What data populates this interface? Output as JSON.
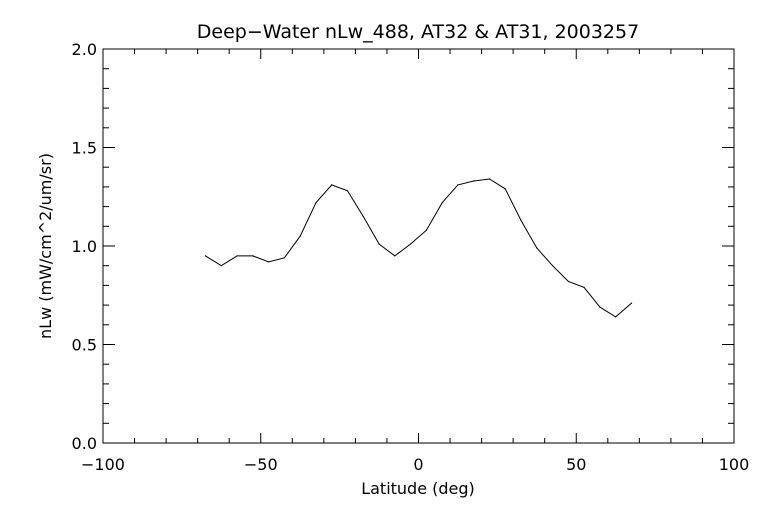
{
  "chart_data": {
    "type": "line",
    "title": "Deep−Water nLw_488, AT32 & AT31, 2003257",
    "xlabel": "Latitude (deg)",
    "ylabel": "nLw (mW/cm^2/um/sr)",
    "xlim": [
      -100,
      100
    ],
    "ylim": [
      0.0,
      2.0
    ],
    "x_ticks": [
      -100,
      -50,
      0,
      50,
      100
    ],
    "x_tick_labels": [
      "−100",
      "−50",
      "0",
      "50",
      "100"
    ],
    "y_ticks": [
      0.0,
      0.5,
      1.0,
      1.5,
      2.0
    ],
    "y_tick_labels": [
      "0.0",
      "0.5",
      "1.0",
      "1.5",
      "2.0"
    ],
    "x_minor_step": 10,
    "y_minor_step": 0.1,
    "grid": false,
    "line_color": "#000000",
    "series": [
      {
        "x": [
          -67.5,
          -62.5,
          -57.5,
          -52.5,
          -47.5,
          -42.5,
          -37.5,
          -32.5,
          -27.5,
          -22.5,
          -17.5,
          -12.5,
          -7.5,
          -2.5,
          2.5,
          7.5,
          12.5,
          17.5,
          22.5,
          27.5,
          32.5,
          37.5,
          42.5,
          47.5,
          52.5,
          57.5,
          62.5,
          67.5
        ],
        "y": [
          0.95,
          0.9,
          0.95,
          0.95,
          0.92,
          0.94,
          1.05,
          1.22,
          1.31,
          1.28,
          1.15,
          1.01,
          0.95,
          1.01,
          1.08,
          1.22,
          1.31,
          1.33,
          1.34,
          1.29,
          1.13,
          0.99,
          0.9,
          0.82,
          0.79,
          0.69,
          0.64,
          0.71
        ]
      }
    ]
  }
}
